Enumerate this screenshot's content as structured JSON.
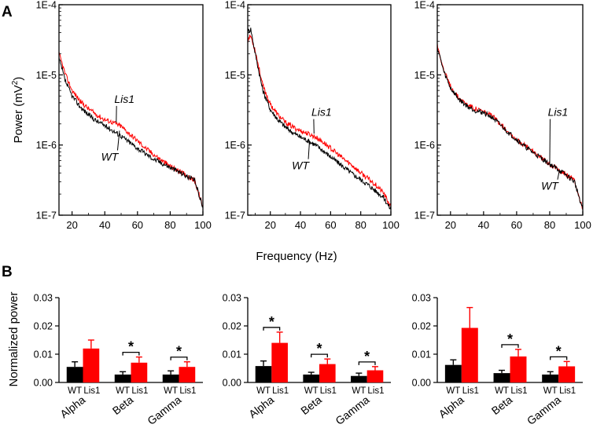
{
  "panel_labels": {
    "a": "A",
    "b": "B"
  },
  "colors": {
    "wt": "#000000",
    "lis1": "#ff0000"
  },
  "chart_data": [
    {
      "type": "line",
      "scale": "log",
      "xlabel": "Frequency (Hz)",
      "ylabel": "Power (mV²)",
      "ylabel_main": "Power (mV",
      "ylabel_sup": "2",
      "ylabel_tail": ")",
      "ytick_labels": [
        "1E-4",
        "1E-5",
        "1E-6",
        "1E-7"
      ],
      "yticks": [
        0.0001,
        1e-05,
        1e-06,
        1e-07
      ],
      "xticks": [
        20,
        40,
        60,
        80,
        100
      ],
      "panels": [
        {
          "xlim": [
            12,
            100
          ],
          "series": [
            {
              "name": "WT",
              "label": "WT",
              "label_at": [
                43,
                6e-07
              ],
              "x": [
                12,
                16,
                20,
                25,
                30,
                35,
                40,
                45,
                50,
                55,
                60,
                65,
                70,
                75,
                80,
                85,
                90,
                95,
                100
              ],
              "y": [
                1.7e-05,
                8e-06,
                5e-06,
                3.5e-06,
                2.7e-06,
                2.2e-06,
                1.9e-06,
                1.6e-06,
                1.35e-06,
                1.1e-06,
                9e-07,
                7.5e-07,
                6.3e-07,
                5.5e-07,
                4.8e-07,
                4.2e-07,
                3.6e-07,
                3.1e-07,
                1.3e-07
              ]
            },
            {
              "name": "Lis1",
              "label": "Lis1",
              "label_at": [
                52,
                4e-06
              ],
              "x": [
                12,
                16,
                20,
                25,
                30,
                35,
                40,
                45,
                50,
                55,
                60,
                65,
                70,
                75,
                80,
                85,
                90,
                95,
                100
              ],
              "y": [
                2e-05,
                1e-05,
                6e-06,
                4.2e-06,
                3.3e-06,
                2.7e-06,
                2.3e-06,
                2.1e-06,
                1.85e-06,
                1.45e-06,
                1.15e-06,
                9e-07,
                7.3e-07,
                6e-07,
                5e-07,
                4.3e-07,
                3.7e-07,
                3.1e-07,
                1.3e-07
              ]
            }
          ]
        },
        {
          "xlim": [
            5,
            100
          ],
          "series": [
            {
              "name": "WT",
              "label": "WT",
              "label_at": [
                40,
                4.5e-07
              ],
              "x": [
                5,
                7,
                10,
                15,
                20,
                25,
                30,
                35,
                40,
                45,
                50,
                55,
                60,
                65,
                70,
                75,
                80,
                85,
                90,
                95,
                100
              ],
              "y": [
                4.2e-05,
                4.5e-05,
                2e-05,
                6e-06,
                3.2e-06,
                2.3e-06,
                1.8e-06,
                1.5e-06,
                1.3e-06,
                1.15e-06,
                1e-06,
                8.3e-07,
                6.8e-07,
                5.6e-07,
                4.6e-07,
                3.8e-07,
                3.2e-07,
                2.7e-07,
                2.2e-07,
                1.8e-07,
                1.2e-07
              ]
            },
            {
              "name": "Lis1",
              "label": "Lis1",
              "label_at": [
                54,
                2.6e-06
              ],
              "x": [
                5,
                7,
                10,
                15,
                20,
                25,
                30,
                35,
                40,
                45,
                50,
                55,
                60,
                65,
                70,
                75,
                80,
                85,
                90,
                95,
                100
              ],
              "y": [
                3.2e-05,
                3.6e-05,
                2.2e-05,
                7e-06,
                3.8e-06,
                2.7e-06,
                2.1e-06,
                1.8e-06,
                1.6e-06,
                1.45e-06,
                1.3e-06,
                1.1e-06,
                9e-07,
                7.3e-07,
                6e-07,
                5e-07,
                4e-07,
                3.3e-07,
                2.7e-07,
                2.1e-07,
                1.3e-07
              ]
            }
          ]
        },
        {
          "xlim": [
            12,
            100
          ],
          "series": [
            {
              "name": "WT",
              "label": "WT",
              "label_at": [
                80,
                2.3e-07
              ],
              "x": [
                12,
                16,
                20,
                25,
                30,
                35,
                40,
                45,
                50,
                55,
                60,
                65,
                70,
                75,
                80,
                85,
                90,
                95,
                100
              ],
              "y": [
                2.5e-05,
                1.1e-05,
                6.5e-06,
                4.5e-06,
                3.6e-06,
                3.1e-06,
                2.9e-06,
                2.5e-06,
                1.95e-06,
                1.5e-06,
                1.2e-06,
                9.5e-07,
                7.8e-07,
                6.5e-07,
                5.3e-07,
                4.5e-07,
                3.7e-07,
                3e-07,
                1.2e-07
              ]
            },
            {
              "name": "Lis1",
              "label": "Lis1",
              "label_at": [
                85,
                2.6e-06
              ],
              "x": [
                12,
                16,
                20,
                25,
                30,
                35,
                40,
                45,
                50,
                55,
                60,
                65,
                70,
                75,
                80,
                85,
                90,
                95,
                100
              ],
              "y": [
                2.7e-05,
                1.15e-05,
                6.8e-06,
                4.7e-06,
                3.8e-06,
                3.3e-06,
                3e-06,
                2.6e-06,
                2.05e-06,
                1.55e-06,
                1.2e-06,
                9.8e-07,
                8e-07,
                6.6e-07,
                5.4e-07,
                4.5e-07,
                3.8e-07,
                3.1e-07,
                1.2e-07
              ]
            }
          ]
        }
      ]
    },
    {
      "type": "bar",
      "ylabel": "Normalized power",
      "ylim": [
        0,
        0.03
      ],
      "ytick_labels": [
        "0.00",
        "0.01",
        "0.02",
        "0.03"
      ],
      "yticks": [
        0,
        0.01,
        0.02,
        0.03
      ],
      "groups": [
        "Alpha",
        "Beta",
        "Gamma"
      ],
      "bar_labels": [
        "WT",
        "Lis1"
      ],
      "significance_mark": "*",
      "panels": [
        {
          "wt": [
            0.0055,
            0.0028,
            0.0028
          ],
          "wt_err": [
            0.0018,
            0.001,
            0.0013
          ],
          "lis1": [
            0.012,
            0.007,
            0.0055
          ],
          "lis1_err": [
            0.003,
            0.002,
            0.0018
          ],
          "significant": [
            false,
            true,
            true
          ]
        },
        {
          "wt": [
            0.0058,
            0.0028,
            0.0023
          ],
          "wt_err": [
            0.0018,
            0.0008,
            0.001
          ],
          "lis1": [
            0.014,
            0.0065,
            0.0043
          ],
          "lis1_err": [
            0.0038,
            0.0018,
            0.0013
          ],
          "significant": [
            true,
            true,
            true
          ]
        },
        {
          "wt": [
            0.0062,
            0.0033,
            0.0028
          ],
          "wt_err": [
            0.0018,
            0.001,
            0.001
          ],
          "lis1": [
            0.0193,
            0.0092,
            0.0057
          ],
          "lis1_err": [
            0.0072,
            0.0025,
            0.0017
          ],
          "significant": [
            false,
            true,
            true
          ]
        }
      ]
    }
  ]
}
